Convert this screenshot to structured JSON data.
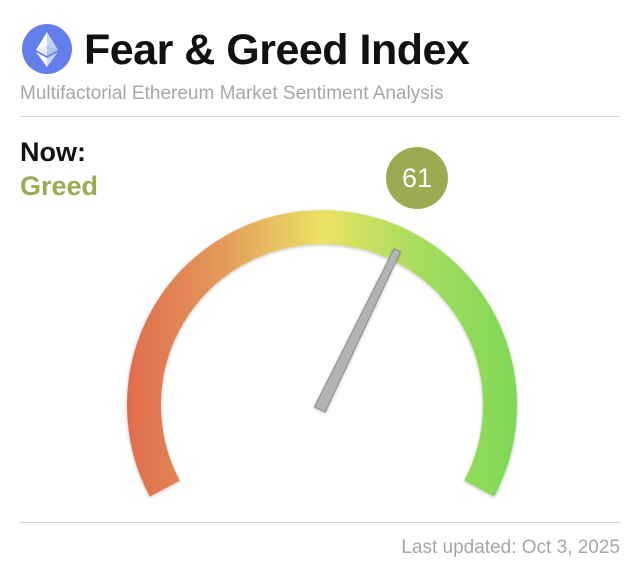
{
  "header": {
    "logo_icon": "ethereum-icon",
    "title": "Fear & Greed Index",
    "subtitle": "Multifactorial Ethereum Market Sentiment Analysis"
  },
  "current": {
    "label": "Now:",
    "classification": "Greed",
    "value": "61",
    "value_number": 61,
    "scale_min": 0,
    "scale_max": 100
  },
  "footer": {
    "last_updated": "Last updated: Oct 3, 2025"
  },
  "colors": {
    "accent": "#9aab52",
    "fear": "#e06a4d",
    "neutral": "#ece265",
    "greed": "#7ed957",
    "brand": "#627eea"
  }
}
